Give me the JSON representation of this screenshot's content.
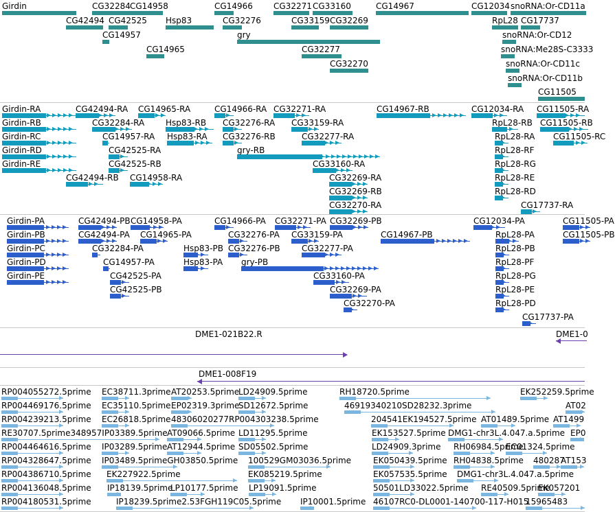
{
  "colors": {
    "gene": "#2f8f8f",
    "transcript": "#139bbd",
    "protein": "#2c5fcc",
    "clone": "#6a3fb0",
    "est": "#7ab6e0",
    "separator": "#c6c6c6"
  },
  "tracks": [
    {
      "name": "gene-track",
      "color_key": "gene",
      "features": [
        {
          "label": "Girdin",
          "kind": "block"
        },
        {
          "label": "CG32284",
          "kind": "block"
        },
        {
          "label": "CG14958",
          "kind": "block"
        },
        {
          "label": "CG14966",
          "kind": "block"
        },
        {
          "label": "CG32271",
          "kind": "block"
        },
        {
          "label": "CG33160",
          "kind": "block"
        },
        {
          "label": "CG14967",
          "kind": "block"
        },
        {
          "label": "CG12034",
          "kind": "block"
        },
        {
          "label": "snoRNA:Or-CD11a",
          "kind": "block"
        },
        {
          "label": "CG42494",
          "kind": "block"
        },
        {
          "label": "CG42525",
          "kind": "block"
        },
        {
          "label": "Hsp83",
          "kind": "block"
        },
        {
          "label": "CG32276",
          "kind": "block"
        },
        {
          "label": "CG33159",
          "kind": "block"
        },
        {
          "label": "CG32269",
          "kind": "block"
        },
        {
          "label": "RpL28",
          "kind": "block"
        },
        {
          "label": "CG17737",
          "kind": "block"
        },
        {
          "label": "CG14957",
          "kind": "block"
        },
        {
          "label": "gry",
          "kind": "block"
        },
        {
          "label": "snoRNA:Or-CD12",
          "kind": "block"
        },
        {
          "label": "CG14965",
          "kind": "block"
        },
        {
          "label": "CG32277",
          "kind": "block"
        },
        {
          "label": "snoRNA:Me28S-C3333",
          "kind": "block"
        },
        {
          "label": "snoRNA:Or-CD11c",
          "kind": "block"
        },
        {
          "label": "CG32270",
          "kind": "block"
        },
        {
          "label": "snoRNA:Or-CD11b",
          "kind": "block"
        },
        {
          "label": "CG11505",
          "kind": "block"
        }
      ]
    },
    {
      "name": "transcript-track",
      "color_key": "transcript",
      "features": [
        {
          "label": "Girdin-RA",
          "kind": "exons"
        },
        {
          "label": "CG42494-RA",
          "kind": "exons"
        },
        {
          "label": "CG14965-RA",
          "kind": "exons"
        },
        {
          "label": "CG14966-RA",
          "kind": "exons"
        },
        {
          "label": "CG32271-RA",
          "kind": "exons"
        },
        {
          "label": "CG14967-RB",
          "kind": "exons"
        },
        {
          "label": "CG12034-RA",
          "kind": "exons"
        },
        {
          "label": "CG11505-RA",
          "kind": "exons"
        },
        {
          "label": "Girdin-RB",
          "kind": "exons"
        },
        {
          "label": "CG32284-RA",
          "kind": "exons"
        },
        {
          "label": "Hsp83-RB",
          "kind": "exons"
        },
        {
          "label": "CG32276-RA",
          "kind": "exons"
        },
        {
          "label": "CG33159-RA",
          "kind": "exons"
        },
        {
          "label": "RpL28-RB",
          "kind": "exons"
        },
        {
          "label": "CG11505-RB",
          "kind": "exons"
        },
        {
          "label": "Girdin-RC",
          "kind": "exons"
        },
        {
          "label": "CG14957-RA",
          "kind": "exons"
        },
        {
          "label": "Hsp83-RA",
          "kind": "exons"
        },
        {
          "label": "CG32276-RB",
          "kind": "exons"
        },
        {
          "label": "CG32277-RA",
          "kind": "exons"
        },
        {
          "label": "RpL28-RA",
          "kind": "exons"
        },
        {
          "label": "CG11505-RC",
          "kind": "exons"
        },
        {
          "label": "Girdin-RD",
          "kind": "exons"
        },
        {
          "label": "CG42525-RA",
          "kind": "exons"
        },
        {
          "label": "gry-RB",
          "kind": "exons"
        },
        {
          "label": "RpL28-RF",
          "kind": "exons"
        },
        {
          "label": "Girdin-RE",
          "kind": "exons"
        },
        {
          "label": "CG42525-RB",
          "kind": "exons"
        },
        {
          "label": "CG33160-RA",
          "kind": "exons"
        },
        {
          "label": "RpL28-RG",
          "kind": "exons"
        },
        {
          "label": "CG42494-RB",
          "kind": "exons"
        },
        {
          "label": "CG14958-RA",
          "kind": "exons"
        },
        {
          "label": "CG32269-RA",
          "kind": "exons"
        },
        {
          "label": "RpL28-RE",
          "kind": "exons"
        },
        {
          "label": "CG32269-RB",
          "kind": "exons"
        },
        {
          "label": "RpL28-RD",
          "kind": "exons"
        },
        {
          "label": "CG32270-RA",
          "kind": "exons"
        },
        {
          "label": "CG17737-RA",
          "kind": "exons"
        }
      ]
    },
    {
      "name": "protein-track",
      "color_key": "protein",
      "features": [
        {
          "label": "Girdin-PA",
          "kind": "exons"
        },
        {
          "label": "CG42494-PB",
          "kind": "exons"
        },
        {
          "label": "CG14958-PA",
          "kind": "exons"
        },
        {
          "label": "CG14966-PA",
          "kind": "exons"
        },
        {
          "label": "CG32271-PA",
          "kind": "exons"
        },
        {
          "label": "CG32269-PB",
          "kind": "exons"
        },
        {
          "label": "CG12034-PA",
          "kind": "exons"
        },
        {
          "label": "CG11505-PA",
          "kind": "exons"
        },
        {
          "label": "Girdin-PB",
          "kind": "exons"
        },
        {
          "label": "CG42494-PA",
          "kind": "exons"
        },
        {
          "label": "CG14965-PA",
          "kind": "exons"
        },
        {
          "label": "CG32276-PA",
          "kind": "exons"
        },
        {
          "label": "CG33159-PA",
          "kind": "exons"
        },
        {
          "label": "CG14967-PB",
          "kind": "exons"
        },
        {
          "label": "RpL28-PA",
          "kind": "exons"
        },
        {
          "label": "CG11505-PB",
          "kind": "exons"
        },
        {
          "label": "Girdin-PC",
          "kind": "exons"
        },
        {
          "label": "CG32284-PA",
          "kind": "exons"
        },
        {
          "label": "Hsp83-PB",
          "kind": "exons"
        },
        {
          "label": "CG32276-PB",
          "kind": "exons"
        },
        {
          "label": "CG32277-PA",
          "kind": "exons"
        },
        {
          "label": "RpL28-PB",
          "kind": "exons"
        },
        {
          "label": "Girdin-PD",
          "kind": "exons"
        },
        {
          "label": "CG14957-PA",
          "kind": "exons"
        },
        {
          "label": "Hsp83-PA",
          "kind": "exons"
        },
        {
          "label": "gry-PB",
          "kind": "exons"
        },
        {
          "label": "RpL28-PF",
          "kind": "exons"
        },
        {
          "label": "Girdin-PE",
          "kind": "exons"
        },
        {
          "label": "CG42525-PA",
          "kind": "exons"
        },
        {
          "label": "CG33160-PA",
          "kind": "exons"
        },
        {
          "label": "RpL28-PG",
          "kind": "exons"
        },
        {
          "label": "CG42525-PB",
          "kind": "exons"
        },
        {
          "label": "CG32269-PA",
          "kind": "exons"
        },
        {
          "label": "RpL28-PE",
          "kind": "exons"
        },
        {
          "label": "CG32270-PA",
          "kind": "exons"
        },
        {
          "label": "RpL28-PD",
          "kind": "exons"
        },
        {
          "label": "CG17737-PA",
          "kind": "exons"
        }
      ]
    },
    {
      "name": "clone-track-a",
      "color_key": "clone",
      "features": [
        {
          "label": "DME1-021B22.R",
          "kind": "clone"
        },
        {
          "label": "DME1-0",
          "kind": "clone"
        }
      ]
    },
    {
      "name": "clone-track-b",
      "color_key": "clone",
      "features": [
        {
          "label": "DME1-008F19",
          "kind": "clone"
        }
      ]
    },
    {
      "name": "est-track",
      "color_key": "est",
      "features": [
        {
          "label": "RP004055272.5prime",
          "kind": "est"
        },
        {
          "label": "EC38711.3prime",
          "kind": "est"
        },
        {
          "label": "AT20253.5prime",
          "kind": "est"
        },
        {
          "label": "LD24909.5prime",
          "kind": "est"
        },
        {
          "label": "RH18720.5prime",
          "kind": "est"
        },
        {
          "label": "EK252259.5prime",
          "kind": "est"
        },
        {
          "label": "RP004469176.5prime",
          "kind": "est"
        },
        {
          "label": "EC35110.5prime",
          "kind": "est"
        },
        {
          "label": "EP02319.3prime",
          "kind": "est"
        },
        {
          "label": "SD12672.5prime",
          "kind": "est"
        },
        {
          "label": "46919340210SD28232.3prime",
          "kind": "est"
        },
        {
          "label": "AT02",
          "kind": "est"
        },
        {
          "label": "RP004239213.5prime",
          "kind": "est"
        },
        {
          "label": "EC26818.5prime",
          "kind": "est"
        },
        {
          "label": "48306020277RP004303238.5prime",
          "kind": "est"
        },
        {
          "label": "204541EK194527.5prime",
          "kind": "est"
        },
        {
          "label": "AT01489.5prime",
          "kind": "est"
        },
        {
          "label": "AT1499",
          "kind": "est"
        },
        {
          "label": "RE30707.5prime348957IP03389.5prime",
          "kind": "est"
        },
        {
          "label": "AT09066.5prime",
          "kind": "est"
        },
        {
          "label": "LD11295.5prime",
          "kind": "est"
        },
        {
          "label": "EK153527.5prime",
          "kind": "est"
        },
        {
          "label": "DMG1-chr3L.4.047.a.5prime",
          "kind": "est"
        },
        {
          "label": "EP0",
          "kind": "est"
        },
        {
          "label": "RP004464616.5prime",
          "kind": "est"
        },
        {
          "label": "IP03289.5prime",
          "kind": "est"
        },
        {
          "label": "AT12944.5prime",
          "kind": "est"
        },
        {
          "label": "SD05502.5prime",
          "kind": "est"
        },
        {
          "label": "LD24909.3prime",
          "kind": "est"
        },
        {
          "label": "RH06984.5prime",
          "kind": "est"
        },
        {
          "label": "EC01324.5prime",
          "kind": "est"
        },
        {
          "label": "RP004328647.5prime",
          "kind": "est"
        },
        {
          "label": "IP03489.5primeGH03850.5prime",
          "kind": "est"
        },
        {
          "label": "100529GM03036.5prime",
          "kind": "est"
        },
        {
          "label": "EK050439.5prime",
          "kind": "est"
        },
        {
          "label": "RH04838.5prime",
          "kind": "est"
        },
        {
          "label": "480287",
          "kind": "est"
        },
        {
          "label": "AT153",
          "kind": "est"
        },
        {
          "label": "RP004386710.5prime",
          "kind": "est"
        },
        {
          "label": "EK227922.5prime",
          "kind": "est"
        },
        {
          "label": "EK085219.5prime",
          "kind": "est"
        },
        {
          "label": "EK057535.5prime",
          "kind": "est"
        },
        {
          "label": "DMG1-chr3L.4.047.a.5prime",
          "kind": "est"
        },
        {
          "label": "RP004136048.5prime",
          "kind": "est"
        },
        {
          "label": "IP18139.5prime",
          "kind": "est"
        },
        {
          "label": "LP10177.5prime",
          "kind": "est"
        },
        {
          "label": "LP19091.5prime",
          "kind": "est"
        },
        {
          "label": "50501LD33022.5prime",
          "kind": "est"
        },
        {
          "label": "RE40509.5prime",
          "kind": "est"
        },
        {
          "label": "EK057201",
          "kind": "est"
        },
        {
          "label": "RP004180531.5prime",
          "kind": "est"
        },
        {
          "label": "IP18239.5prime2.53FGH119C05.5prime",
          "kind": "est"
        },
        {
          "label": "IP10001.5prime",
          "kind": "est"
        },
        {
          "label": "46107RC0-DL0001-140700-117-H015",
          "kind": "est"
        },
        {
          "label": "15965483",
          "kind": "est"
        }
      ]
    }
  ]
}
